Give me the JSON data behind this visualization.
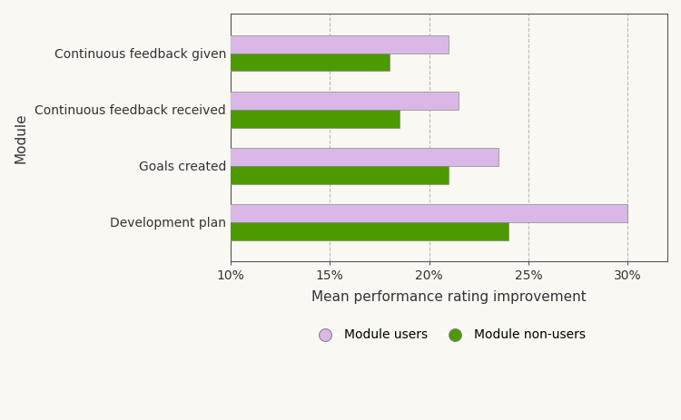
{
  "categories": [
    "Development plan",
    "Goals created",
    "Continuous feedback received",
    "Continuous feedback given"
  ],
  "users_values": [
    30.0,
    23.5,
    21.5,
    21.0
  ],
  "non_users_values": [
    24.0,
    21.0,
    18.5,
    18.0
  ],
  "user_color": "#d9b8e8",
  "non_user_color": "#4c9900",
  "background_color": "#faf8f2",
  "plot_bg_color": "#faf8f2",
  "xlabel": "Mean performance rating improvement",
  "ylabel": "Module",
  "legend_users": "Module users",
  "legend_non_users": "Module non-users",
  "xlim_min": 10,
  "xlim_max": 32,
  "xticks": [
    10,
    15,
    20,
    25,
    30
  ],
  "xtick_labels": [
    "10%",
    "15%",
    "20%",
    "25%",
    "30%"
  ],
  "bar_height": 0.32,
  "label_fontsize": 11,
  "tick_fontsize": 10,
  "legend_fontsize": 10,
  "grid_color": "#bbbbbb",
  "bar_edge_color": "#888888",
  "spine_color": "#555555"
}
